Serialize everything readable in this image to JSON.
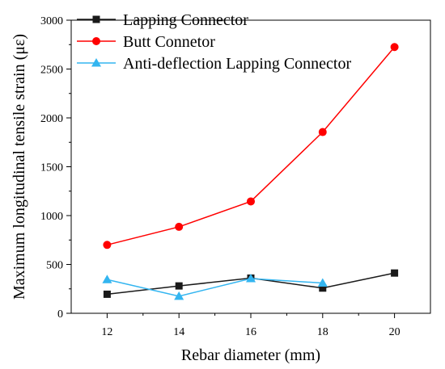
{
  "chart_data": {
    "type": "line",
    "title": "",
    "xlabel": "Rebar diameter (mm)",
    "ylabel": "Maximum longitudinal tensile strain (με)",
    "x": [
      12,
      14,
      16,
      18,
      20
    ],
    "xlim": [
      11,
      21
    ],
    "ylim": [
      0,
      3000
    ],
    "xticks": [
      12,
      14,
      16,
      18,
      20
    ],
    "yticks": [
      0,
      500,
      1000,
      1500,
      2000,
      2500,
      3000
    ],
    "grid": false,
    "legend_position": "top-left",
    "series": [
      {
        "name": "Lapping Connector",
        "values": [
          195,
          280,
          360,
          258,
          412
        ],
        "color": "#1a1a1a",
        "marker": "square"
      },
      {
        "name": "Butt Connetor",
        "values": [
          700,
          885,
          1145,
          1855,
          2725
        ],
        "color": "#ff0000",
        "marker": "circle"
      },
      {
        "name": "Anti-deflection Lapping Connector",
        "values": [
          345,
          175,
          355,
          310,
          null
        ],
        "color": "#33b5f0",
        "marker": "triangle"
      }
    ]
  }
}
